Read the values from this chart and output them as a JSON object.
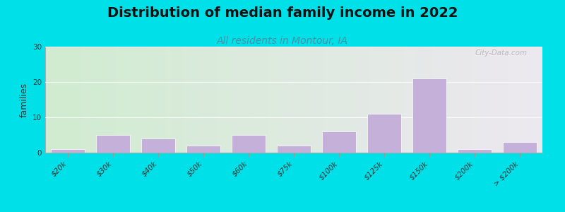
{
  "title": "Distribution of median family income in 2022",
  "subtitle": "All residents in Montour, IA",
  "ylabel": "families",
  "categories": [
    "$20k",
    "$30k",
    "$40k",
    "$50k",
    "$60k",
    "$75k",
    "$100k",
    "$125k",
    "$150k",
    "$200k",
    "> $200k"
  ],
  "values": [
    1,
    5,
    4,
    2,
    5,
    2,
    6,
    11,
    21,
    1,
    3
  ],
  "bar_color": "#c4b0d8",
  "bar_edge_color": "#ffffff",
  "background_outer": "#00e0e8",
  "background_gradient_left": "#d0ecd0",
  "background_gradient_right": "#ede8f0",
  "ylim": [
    0,
    30
  ],
  "yticks": [
    0,
    10,
    20,
    30
  ],
  "title_fontsize": 14,
  "subtitle_fontsize": 10,
  "subtitle_color": "#4a90a4",
  "ylabel_fontsize": 9,
  "tick_fontsize": 7.5,
  "watermark_text": "City-Data.com"
}
